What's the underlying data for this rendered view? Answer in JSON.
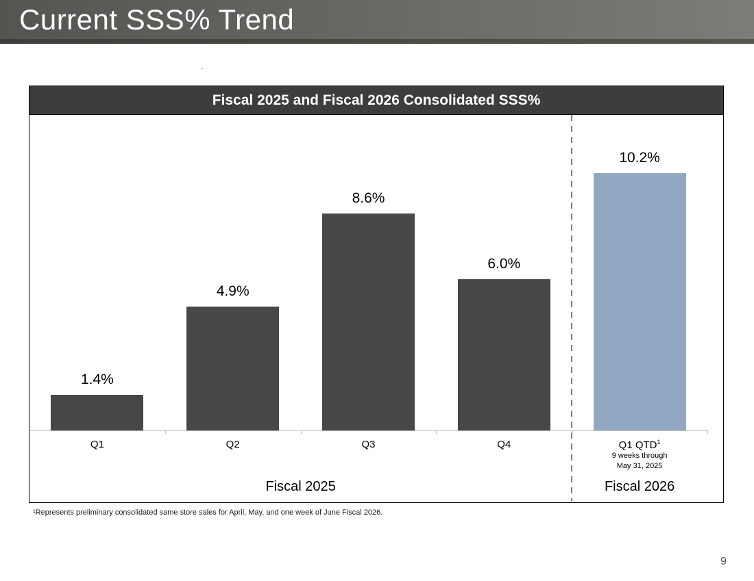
{
  "page": {
    "title": "Current SSS% Trend",
    "stray_mark": ".",
    "footnote": "¹Represents preliminary consolidated same store sales for April, May, and one week of June Fiscal 2026.",
    "page_number": "9"
  },
  "chart_data": {
    "type": "bar",
    "title": "Fiscal 2025 and Fiscal 2026 Consolidated SSS%",
    "categories": [
      "Q1",
      "Q2",
      "Q3",
      "Q4",
      "Q1 QTD"
    ],
    "category_superscripts": [
      "",
      "",
      "",
      "",
      "1"
    ],
    "category_sublabels": [
      [],
      [],
      [],
      [],
      [
        "9 weeks through",
        "May 31, 2025"
      ]
    ],
    "values": [
      1.4,
      4.9,
      8.6,
      6.0,
      10.2
    ],
    "value_labels": [
      "1.4%",
      "4.9%",
      "8.6%",
      "6.0%",
      "10.2%"
    ],
    "bar_colors": [
      "#474747",
      "#474747",
      "#474747",
      "#474747",
      "#92a7c2"
    ],
    "groups": [
      {
        "label": "Fiscal 2025",
        "span": [
          0,
          4
        ]
      },
      {
        "label": "Fiscal 2026",
        "span": [
          4,
          5
        ]
      }
    ],
    "divider_after_index": 3,
    "divider_color": "#7081a0",
    "axis_color": "#bfbfbf",
    "xlabel": "",
    "ylabel": "",
    "ylim": [
      0,
      12.5
    ],
    "grid": false,
    "legend": false
  }
}
